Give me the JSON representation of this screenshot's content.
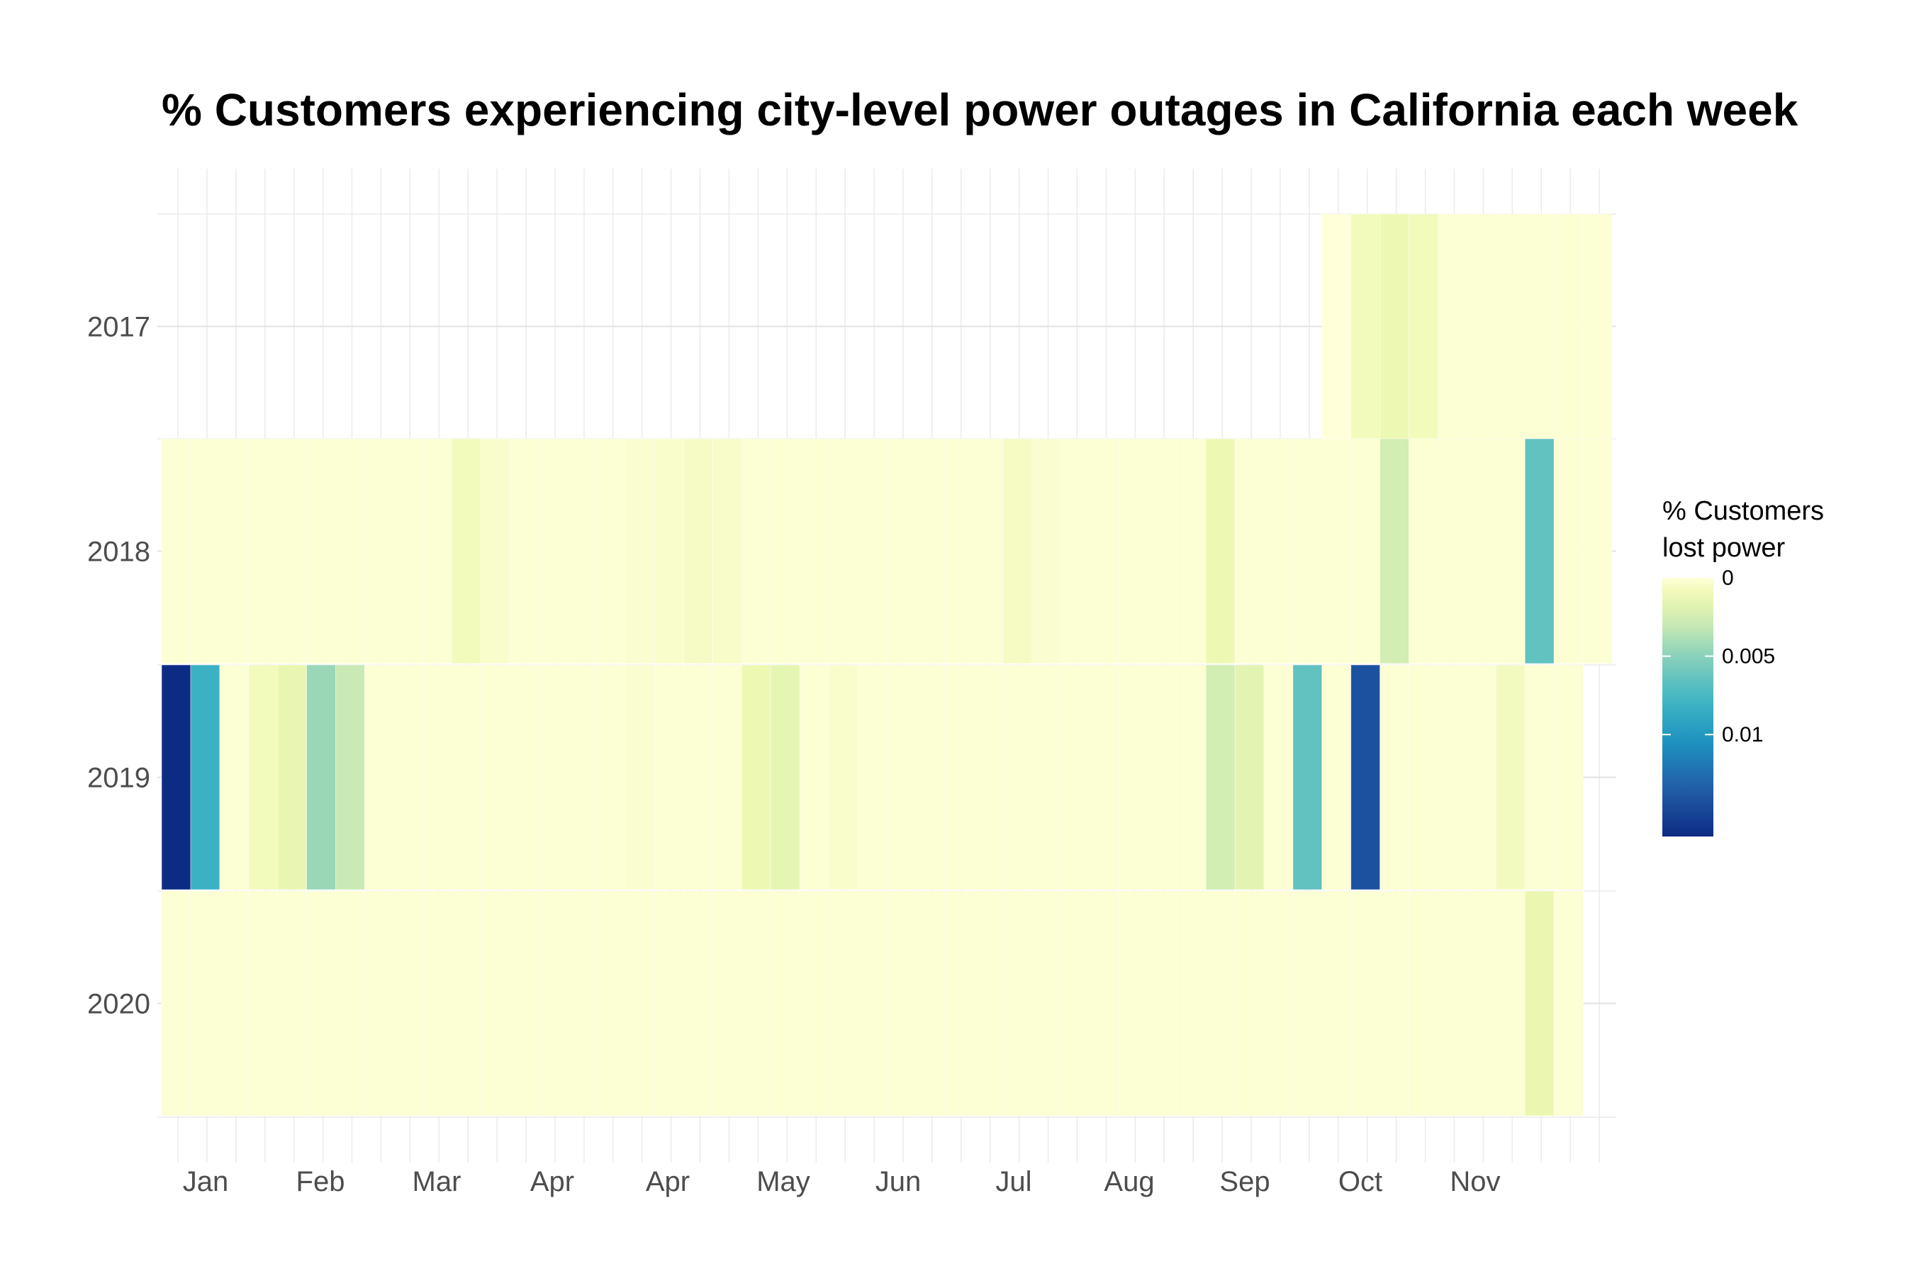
{
  "chart_data": {
    "type": "heatmap",
    "title": "% Customers experiencing city-level power outages in California each week",
    "xlabel": "",
    "ylabel": "",
    "x_tick_labels": [
      "Jan",
      "Feb",
      "Mar",
      "Apr",
      "Apr",
      "May",
      "Jun",
      "Jul",
      "Aug",
      "Sep",
      "Oct",
      "Nov"
    ],
    "y_categories": [
      "2017",
      "2018",
      "2019",
      "2020"
    ],
    "weeks_per_year": 50,
    "grid": true,
    "colorscale": [
      "#ffffd9",
      "#edf8b1",
      "#c7e9b4",
      "#7fcdbb",
      "#41b6c4",
      "#1d91c0",
      "#225ea8",
      "#0c2c84"
    ],
    "legend": {
      "title_line1": "% Customers",
      "title_line2": "lost power",
      "position": "right",
      "range": [
        0,
        0.0165
      ],
      "ticks": [
        {
          "label": "0",
          "value": 0
        },
        {
          "label": "0.005",
          "value": 0.005
        },
        {
          "label": "0.01",
          "value": 0.01
        }
      ]
    },
    "series": [
      {
        "year": "2017",
        "values": [
          null,
          null,
          null,
          null,
          null,
          null,
          null,
          null,
          null,
          null,
          null,
          null,
          null,
          null,
          null,
          null,
          null,
          null,
          null,
          null,
          null,
          null,
          null,
          null,
          null,
          null,
          null,
          null,
          null,
          null,
          null,
          null,
          null,
          null,
          null,
          null,
          null,
          null,
          null,
          null,
          0,
          0.0008,
          0.0012,
          0.0008,
          0.0001,
          0.0001,
          0.0001,
          0.0001,
          0.0001,
          0.0001
        ]
      },
      {
        "year": "2018",
        "values": [
          0.0001,
          0.0001,
          0.0001,
          0.0001,
          0.0001,
          0.0001,
          0.0001,
          0.0001,
          0.0001,
          0.0001,
          0.0008,
          0.0003,
          0.0001,
          0.0001,
          0.0001,
          0.0001,
          0.0002,
          0.0003,
          0.0005,
          0.0004,
          0.0001,
          0.0001,
          0.0001,
          0.0001,
          0.0001,
          0.0001,
          0.0001,
          0.0001,
          0.0001,
          0.0006,
          0.0002,
          0.0001,
          0.0001,
          0.0001,
          0.0001,
          0.0001,
          0.0012,
          0.0001,
          0.0001,
          0.0001,
          0.0001,
          0.0001,
          0.0025,
          0.0001,
          0.0001,
          0.0001,
          0.0001,
          0.0065,
          0.0001,
          0.0001
        ]
      },
      {
        "year": "2019",
        "values": [
          0.0165,
          0.0082,
          0.0001,
          0.0008,
          0.0014,
          0.0045,
          0.003,
          0.0001,
          0.0001,
          0.0001,
          0.0001,
          0.0001,
          0.0001,
          0.0001,
          0.0001,
          0.0001,
          0.0002,
          0.0001,
          0.0001,
          0.0001,
          0.0012,
          0.0016,
          0.0001,
          0.0003,
          0.0001,
          0.0001,
          0.0001,
          0.0001,
          0.0001,
          0.0001,
          0.0001,
          0.0001,
          0.0001,
          0.0001,
          0.0001,
          0.0001,
          0.0025,
          0.0017,
          0.0001,
          0.0065,
          0.0001,
          0.0142,
          0.0001,
          0.0001,
          0.0001,
          0.0001,
          0.0007,
          0.0001,
          0.0001,
          null
        ]
      },
      {
        "year": "2020",
        "values": [
          0.0001,
          0.0001,
          0.0001,
          0.0001,
          0.0001,
          0.0001,
          0.0001,
          0.0001,
          0.0001,
          0.0001,
          0.0001,
          0.0001,
          0.0001,
          0.0001,
          0.0001,
          0.0001,
          0.0001,
          0.0001,
          0.0001,
          0.0001,
          0.0001,
          0.0001,
          0.0001,
          0.0001,
          0.0001,
          0.0001,
          0.0001,
          0.0001,
          0.0001,
          0.0001,
          0.0001,
          0.0001,
          0.0001,
          0.0001,
          0.0001,
          0.0001,
          0.0001,
          0.0001,
          0.0001,
          0.0001,
          0.0001,
          0.0001,
          0.0001,
          0.0001,
          0.0001,
          0.0001,
          0.0001,
          0.0013,
          0.0001,
          null
        ]
      }
    ]
  }
}
